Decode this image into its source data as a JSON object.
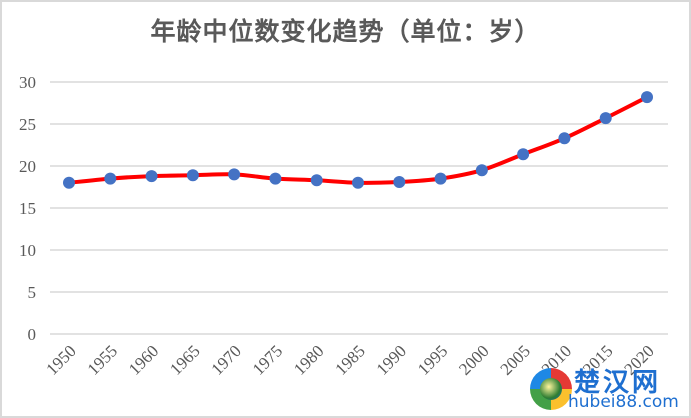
{
  "chart_data": {
    "type": "line",
    "title": "年龄中位数变化趋势（单位：岁）",
    "xlabel": "",
    "ylabel": "",
    "categories": [
      "1950",
      "1955",
      "1960",
      "1965",
      "1970",
      "1975",
      "1980",
      "1985",
      "1990",
      "1995",
      "2000",
      "2005",
      "2010",
      "2015",
      "2020"
    ],
    "series": [
      {
        "name": "年龄中位数",
        "values": [
          18.0,
          18.5,
          18.8,
          18.9,
          19.0,
          18.5,
          18.3,
          18.0,
          18.1,
          18.5,
          19.5,
          21.4,
          23.3,
          25.7,
          28.2
        ],
        "line_color": "#ff0000",
        "marker_color": "#4472c4",
        "smooth": true
      }
    ],
    "ylim": [
      0,
      30
    ],
    "yticks": [
      0,
      5,
      10,
      15,
      20,
      25,
      30
    ],
    "grid": true,
    "legend": "none",
    "x_tick_rotation": -45
  },
  "watermark": {
    "cn": "楚汉网",
    "en": "hubei88.com"
  }
}
